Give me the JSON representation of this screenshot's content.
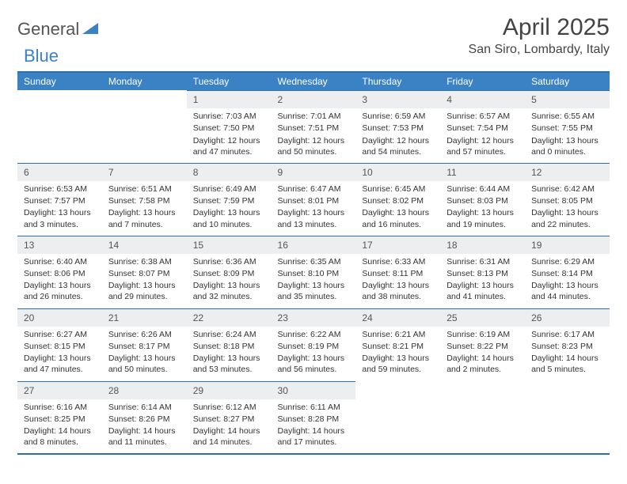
{
  "logo": {
    "text1": "General",
    "text2": "Blue"
  },
  "title": "April 2025",
  "location": "San Siro, Lombardy, Italy",
  "colors": {
    "header_bg": "#3b82c4",
    "border": "#2f6fa8",
    "daynum_bg": "#eceeef",
    "text": "#333333"
  },
  "weekdays": [
    "Sunday",
    "Monday",
    "Tuesday",
    "Wednesday",
    "Thursday",
    "Friday",
    "Saturday"
  ],
  "weeks": [
    [
      null,
      null,
      {
        "n": "1",
        "sr": "Sunrise: 7:03 AM",
        "ss": "Sunset: 7:50 PM",
        "dl": "Daylight: 12 hours and 47 minutes."
      },
      {
        "n": "2",
        "sr": "Sunrise: 7:01 AM",
        "ss": "Sunset: 7:51 PM",
        "dl": "Daylight: 12 hours and 50 minutes."
      },
      {
        "n": "3",
        "sr": "Sunrise: 6:59 AM",
        "ss": "Sunset: 7:53 PM",
        "dl": "Daylight: 12 hours and 54 minutes."
      },
      {
        "n": "4",
        "sr": "Sunrise: 6:57 AM",
        "ss": "Sunset: 7:54 PM",
        "dl": "Daylight: 12 hours and 57 minutes."
      },
      {
        "n": "5",
        "sr": "Sunrise: 6:55 AM",
        "ss": "Sunset: 7:55 PM",
        "dl": "Daylight: 13 hours and 0 minutes."
      }
    ],
    [
      {
        "n": "6",
        "sr": "Sunrise: 6:53 AM",
        "ss": "Sunset: 7:57 PM",
        "dl": "Daylight: 13 hours and 3 minutes."
      },
      {
        "n": "7",
        "sr": "Sunrise: 6:51 AM",
        "ss": "Sunset: 7:58 PM",
        "dl": "Daylight: 13 hours and 7 minutes."
      },
      {
        "n": "8",
        "sr": "Sunrise: 6:49 AM",
        "ss": "Sunset: 7:59 PM",
        "dl": "Daylight: 13 hours and 10 minutes."
      },
      {
        "n": "9",
        "sr": "Sunrise: 6:47 AM",
        "ss": "Sunset: 8:01 PM",
        "dl": "Daylight: 13 hours and 13 minutes."
      },
      {
        "n": "10",
        "sr": "Sunrise: 6:45 AM",
        "ss": "Sunset: 8:02 PM",
        "dl": "Daylight: 13 hours and 16 minutes."
      },
      {
        "n": "11",
        "sr": "Sunrise: 6:44 AM",
        "ss": "Sunset: 8:03 PM",
        "dl": "Daylight: 13 hours and 19 minutes."
      },
      {
        "n": "12",
        "sr": "Sunrise: 6:42 AM",
        "ss": "Sunset: 8:05 PM",
        "dl": "Daylight: 13 hours and 22 minutes."
      }
    ],
    [
      {
        "n": "13",
        "sr": "Sunrise: 6:40 AM",
        "ss": "Sunset: 8:06 PM",
        "dl": "Daylight: 13 hours and 26 minutes."
      },
      {
        "n": "14",
        "sr": "Sunrise: 6:38 AM",
        "ss": "Sunset: 8:07 PM",
        "dl": "Daylight: 13 hours and 29 minutes."
      },
      {
        "n": "15",
        "sr": "Sunrise: 6:36 AM",
        "ss": "Sunset: 8:09 PM",
        "dl": "Daylight: 13 hours and 32 minutes."
      },
      {
        "n": "16",
        "sr": "Sunrise: 6:35 AM",
        "ss": "Sunset: 8:10 PM",
        "dl": "Daylight: 13 hours and 35 minutes."
      },
      {
        "n": "17",
        "sr": "Sunrise: 6:33 AM",
        "ss": "Sunset: 8:11 PM",
        "dl": "Daylight: 13 hours and 38 minutes."
      },
      {
        "n": "18",
        "sr": "Sunrise: 6:31 AM",
        "ss": "Sunset: 8:13 PM",
        "dl": "Daylight: 13 hours and 41 minutes."
      },
      {
        "n": "19",
        "sr": "Sunrise: 6:29 AM",
        "ss": "Sunset: 8:14 PM",
        "dl": "Daylight: 13 hours and 44 minutes."
      }
    ],
    [
      {
        "n": "20",
        "sr": "Sunrise: 6:27 AM",
        "ss": "Sunset: 8:15 PM",
        "dl": "Daylight: 13 hours and 47 minutes."
      },
      {
        "n": "21",
        "sr": "Sunrise: 6:26 AM",
        "ss": "Sunset: 8:17 PM",
        "dl": "Daylight: 13 hours and 50 minutes."
      },
      {
        "n": "22",
        "sr": "Sunrise: 6:24 AM",
        "ss": "Sunset: 8:18 PM",
        "dl": "Daylight: 13 hours and 53 minutes."
      },
      {
        "n": "23",
        "sr": "Sunrise: 6:22 AM",
        "ss": "Sunset: 8:19 PM",
        "dl": "Daylight: 13 hours and 56 minutes."
      },
      {
        "n": "24",
        "sr": "Sunrise: 6:21 AM",
        "ss": "Sunset: 8:21 PM",
        "dl": "Daylight: 13 hours and 59 minutes."
      },
      {
        "n": "25",
        "sr": "Sunrise: 6:19 AM",
        "ss": "Sunset: 8:22 PM",
        "dl": "Daylight: 14 hours and 2 minutes."
      },
      {
        "n": "26",
        "sr": "Sunrise: 6:17 AM",
        "ss": "Sunset: 8:23 PM",
        "dl": "Daylight: 14 hours and 5 minutes."
      }
    ],
    [
      {
        "n": "27",
        "sr": "Sunrise: 6:16 AM",
        "ss": "Sunset: 8:25 PM",
        "dl": "Daylight: 14 hours and 8 minutes."
      },
      {
        "n": "28",
        "sr": "Sunrise: 6:14 AM",
        "ss": "Sunset: 8:26 PM",
        "dl": "Daylight: 14 hours and 11 minutes."
      },
      {
        "n": "29",
        "sr": "Sunrise: 6:12 AM",
        "ss": "Sunset: 8:27 PM",
        "dl": "Daylight: 14 hours and 14 minutes."
      },
      {
        "n": "30",
        "sr": "Sunrise: 6:11 AM",
        "ss": "Sunset: 8:28 PM",
        "dl": "Daylight: 14 hours and 17 minutes."
      },
      null,
      null,
      null
    ]
  ]
}
